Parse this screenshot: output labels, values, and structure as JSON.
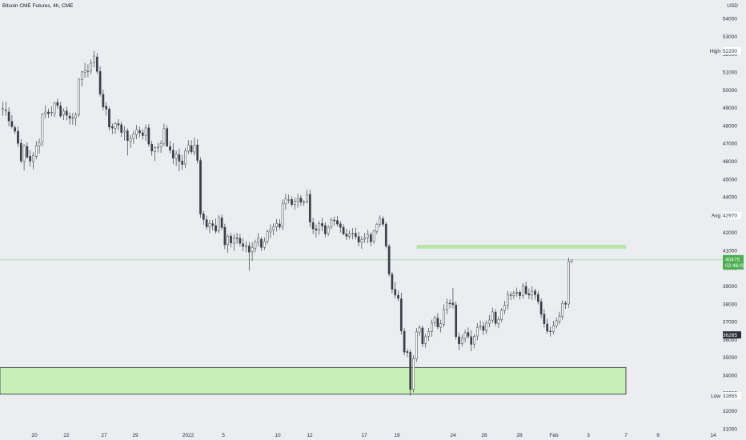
{
  "header": {
    "title": "Bitcoin CME Futures, 4h, CME",
    "currency": "USD"
  },
  "colors": {
    "background": "#ebedf0",
    "candle_up_fill": "#ffffff",
    "candle_down_fill": "#3c3f47",
    "candle_outline": "#3c3f47",
    "zone_fill": "#c8efb8",
    "zone_border": "#2a2e39",
    "thin_zone_fill": "#b7e7a8",
    "price_line": "#8fd09a",
    "last_price_bg": "#4caf50",
    "label_bg": "#ffffff"
  },
  "chart_data": {
    "type": "candlestick",
    "title": "Bitcoin CME Futures, 4h, CME",
    "y_axis": {
      "unit": "USD",
      "range": [
        31000,
        54600
      ],
      "ticks": [
        54000,
        53000,
        52000,
        51000,
        50000,
        49000,
        48000,
        47000,
        46000,
        45000,
        44000,
        43000,
        42000,
        41000,
        40000,
        39000,
        38000,
        37000,
        36000,
        35000,
        34000,
        33000,
        32000,
        31000
      ]
    },
    "x_axis": {
      "ticks": [
        "20",
        "22",
        "27",
        "29",
        "2022",
        "5",
        "10",
        "12",
        "17",
        "19",
        "24",
        "26",
        "28",
        "Feb",
        "3",
        "7",
        "9",
        "14"
      ]
    },
    "levels": [
      {
        "label": "High",
        "value": 52200
      },
      {
        "label": "Avg",
        "value": 42970
      },
      {
        "label": "Low",
        "value": 32855
      }
    ],
    "last_price": {
      "value": 40475,
      "countdown": "02:46:02"
    },
    "marker_price": 36265,
    "zones": [
      {
        "name": "support-zone",
        "from": 32940,
        "to": 34440,
        "x_start": "start",
        "x_end": "9"
      },
      {
        "name": "resistance-zone",
        "from": 41120,
        "to": 41300,
        "x_start": "19",
        "x_end": "9"
      }
    ],
    "candles": [
      [
        48904,
        49337,
        48560,
        48958
      ],
      [
        48875,
        49335,
        48560,
        48840
      ],
      [
        48770,
        49029,
        47961,
        48266
      ],
      [
        48243,
        48590,
        47850,
        47946
      ],
      [
        47895,
        48031,
        47525,
        47690
      ],
      [
        47689,
        47938,
        46811,
        47008
      ],
      [
        47008,
        47241,
        45885,
        46019
      ],
      [
        46021,
        46954,
        45504,
        46878
      ],
      [
        46833,
        47064,
        46143,
        46236
      ],
      [
        46281,
        46627,
        45703,
        46010
      ],
      [
        45980,
        46511,
        45552,
        46335
      ],
      [
        46288,
        47137,
        46123,
        46875
      ],
      [
        46887,
        47269,
        46445,
        47025
      ],
      [
        47082,
        48703,
        46840,
        48642
      ],
      [
        48662,
        49132,
        48408,
        48768
      ],
      [
        48768,
        48960,
        48432,
        48673
      ],
      [
        48751,
        49082,
        48530,
        48757
      ],
      [
        48703,
        49345,
        48488,
        49268
      ],
      [
        49310,
        49520,
        48948,
        49127
      ],
      [
        49107,
        49317,
        48446,
        48540
      ],
      [
        48607,
        48967,
        48319,
        48815
      ],
      [
        48825,
        49066,
        48297,
        48582
      ],
      [
        48542,
        48750,
        48071,
        48411
      ],
      [
        48430,
        48716,
        48054,
        48450
      ],
      [
        48423,
        48753,
        48003,
        48606
      ],
      [
        48631,
        50651,
        48492,
        50616
      ],
      [
        50572,
        51052,
        50205,
        51018
      ],
      [
        50981,
        51521,
        50695,
        51089
      ],
      [
        51047,
        51446,
        50719,
        51056
      ],
      [
        51078,
        51722,
        50885,
        51501
      ],
      [
        51531,
        52200,
        51274,
        51905
      ],
      [
        51859,
        52076,
        50913,
        51044
      ],
      [
        51036,
        51326,
        49633,
        49775
      ],
      [
        49757,
        50023,
        48871,
        49047
      ],
      [
        49096,
        49312,
        48569,
        48931
      ],
      [
        48929,
        49072,
        47718,
        47922
      ],
      [
        47953,
        48129,
        47527,
        47865
      ],
      [
        47859,
        48213,
        47545,
        48110
      ],
      [
        48117,
        48362,
        47755,
        48032
      ],
      [
        48056,
        48230,
        47377,
        47621
      ],
      [
        47641,
        47972,
        47176,
        47719
      ],
      [
        47707,
        47850,
        46331,
        47167
      ],
      [
        47120,
        47472,
        46752,
        47271
      ],
      [
        47284,
        47701,
        46986,
        47532
      ],
      [
        47496,
        48044,
        47244,
        47771
      ],
      [
        47726,
        47935,
        47347,
        47602
      ],
      [
        47604,
        47806,
        47227,
        47445
      ],
      [
        47451,
        48061,
        47147,
        47875
      ],
      [
        47880,
        48097,
        46813,
        46970
      ],
      [
        46958,
        47138,
        46319,
        46572
      ],
      [
        46555,
        46862,
        46011,
        46759
      ],
      [
        46749,
        47049,
        46500,
        46793
      ],
      [
        46809,
        47177,
        46475,
        46999
      ],
      [
        47016,
        48111,
        46857,
        47831
      ],
      [
        47838,
        48030,
        46800,
        46855
      ],
      [
        46831,
        47154,
        46447,
        46629
      ],
      [
        46623,
        47019,
        45849,
        46176
      ],
      [
        46166,
        46598,
        45740,
        46389
      ],
      [
        46370,
        46724,
        45445,
        46004
      ],
      [
        46023,
        46366,
        45524,
        45823
      ],
      [
        45843,
        46762,
        45617,
        46591
      ],
      [
        46571,
        47178,
        46410,
        46916
      ],
      [
        46879,
        47183,
        46416,
        46529
      ],
      [
        46525,
        47330,
        46337,
        46896
      ],
      [
        46922,
        47241,
        45870,
        46054
      ],
      [
        46049,
        46218,
        42838,
        43051
      ],
      [
        43062,
        43223,
        42445,
        42738
      ],
      [
        42729,
        42954,
        42175,
        42326
      ],
      [
        42313,
        42710,
        41976,
        42521
      ],
      [
        42503,
        42713,
        42138,
        42400
      ],
      [
        42401,
        42793,
        41934,
        42081
      ],
      [
        42116,
        42994,
        41981,
        42852
      ],
      [
        42829,
        43010,
        42161,
        42284
      ],
      [
        42298,
        42495,
        41073,
        41318
      ],
      [
        41330,
        41922,
        40873,
        41809
      ],
      [
        41809,
        41980,
        41160,
        41420
      ],
      [
        41412,
        41911,
        40976,
        41693
      ],
      [
        41704,
        41979,
        41364,
        41688
      ],
      [
        41689,
        41933,
        41223,
        41405
      ],
      [
        41378,
        41687,
        40964,
        41227
      ],
      [
        41195,
        41527,
        40901,
        41273
      ],
      [
        41263,
        41473,
        39868,
        40904
      ],
      [
        40946,
        41466,
        40415,
        41162
      ],
      [
        41132,
        41608,
        40881,
        41478
      ],
      [
        41473,
        41976,
        41230,
        41673
      ],
      [
        41632,
        41775,
        40965,
        41172
      ],
      [
        41178,
        41738,
        41028,
        41499
      ],
      [
        41518,
        42166,
        41351,
        42051
      ],
      [
        42039,
        42466,
        41690,
        42181
      ],
      [
        42168,
        42518,
        41858,
        42318
      ],
      [
        42330,
        42764,
        42066,
        42520
      ],
      [
        42491,
        42764,
        42182,
        42312
      ],
      [
        42315,
        43861,
        42144,
        43612
      ],
      [
        43616,
        44182,
        43276,
        43890
      ],
      [
        43840,
        44142,
        43636,
        43853
      ],
      [
        43865,
        44034,
        43451,
        43576
      ],
      [
        43593,
        43968,
        43295,
        43751
      ],
      [
        43750,
        44170,
        43407,
        43907
      ],
      [
        43934,
        44107,
        43515,
        43710
      ],
      [
        43690,
        43840,
        43488,
        43734
      ],
      [
        43746,
        44421,
        43624,
        44140
      ],
      [
        44151,
        44405,
        42313,
        42592
      ],
      [
        42564,
        42821,
        41932,
        42210
      ],
      [
        42215,
        42451,
        41739,
        42142
      ],
      [
        42150,
        42652,
        41887,
        42513
      ],
      [
        42513,
        42829,
        42088,
        42376
      ],
      [
        42402,
        42583,
        41745,
        41938
      ],
      [
        41963,
        42427,
        41818,
        42296
      ],
      [
        42321,
        42838,
        42201,
        42712
      ],
      [
        42706,
        42900,
        42400,
        42684
      ],
      [
        42682,
        42930,
        42346,
        42483
      ],
      [
        42495,
        42640,
        42004,
        42301
      ],
      [
        42302,
        42475,
        41858,
        41922
      ],
      [
        41921,
        42213,
        41587,
        41797
      ],
      [
        41797,
        42138,
        41625,
        41913
      ],
      [
        41924,
        42254,
        41622,
        41959
      ],
      [
        41969,
        42288,
        41622,
        41780
      ],
      [
        41781,
        42034,
        41237,
        41463
      ],
      [
        41473,
        41798,
        41102,
        41611
      ],
      [
        41638,
        41995,
        41423,
        41697
      ],
      [
        41720,
        42162,
        41393,
        41911
      ],
      [
        41892,
        42022,
        41251,
        41490
      ],
      [
        41515,
        42162,
        41378,
        42093
      ],
      [
        42067,
        42567,
        41911,
        42472
      ],
      [
        42475,
        42974,
        42306,
        42805
      ],
      [
        42781,
        42918,
        42344,
        42473
      ],
      [
        42483,
        42598,
        41120,
        41246
      ],
      [
        41239,
        41356,
        39539,
        39680
      ],
      [
        39669,
        39805,
        38590,
        38825
      ],
      [
        38823,
        39227,
        38306,
        38498
      ],
      [
        38486,
        38743,
        38163,
        38319
      ],
      [
        38289,
        38628,
        36295,
        36490
      ],
      [
        36471,
        36648,
        35124,
        35300
      ],
      [
        35333,
        35481,
        35020,
        35278
      ],
      [
        35290,
        35459,
        32855,
        33199
      ],
      [
        33211,
        35123,
        33049,
        34937
      ],
      [
        34919,
        36649,
        34754,
        36433
      ],
      [
        36422,
        36809,
        36196,
        36661
      ],
      [
        36654,
        36784,
        35587,
        35768
      ],
      [
        35783,
        36315,
        35553,
        36164
      ],
      [
        36193,
        36651,
        35928,
        36458
      ],
      [
        36457,
        37121,
        36160,
        36930
      ],
      [
        36936,
        37337,
        36746,
        37204
      ],
      [
        37209,
        37487,
        36585,
        36710
      ],
      [
        36695,
        37114,
        36409,
        36889
      ],
      [
        36863,
        37979,
        36709,
        37684
      ],
      [
        37682,
        38304,
        37419,
        38067
      ],
      [
        38045,
        38256,
        37768,
        38043
      ],
      [
        38056,
        38890,
        37750,
        37962
      ],
      [
        37946,
        38138,
        36001,
        36166
      ],
      [
        36164,
        36384,
        35400,
        35760
      ],
      [
        35783,
        36280,
        35605,
        36078
      ],
      [
        36076,
        36554,
        35833,
        36384
      ],
      [
        36406,
        36678,
        36045,
        36185
      ],
      [
        36165,
        36537,
        35346,
        35737
      ],
      [
        35750,
        36307,
        35515,
        36174
      ],
      [
        36207,
        36926,
        35962,
        36690
      ],
      [
        36704,
        37075,
        36531,
        36747
      ],
      [
        36756,
        37000,
        36258,
        36519
      ],
      [
        36494,
        37074,
        36314,
        36927
      ],
      [
        36919,
        37380,
        36690,
        37099
      ],
      [
        37095,
        37794,
        36927,
        37557
      ],
      [
        37546,
        37711,
        36761,
        36912
      ],
      [
        36910,
        37301,
        36646,
        37138
      ],
      [
        37127,
        37765,
        36994,
        37638
      ],
      [
        37625,
        38174,
        37433,
        37936
      ],
      [
        37945,
        38731,
        37684,
        38534
      ],
      [
        38512,
        38683,
        38220,
        38488
      ],
      [
        38478,
        38752,
        38290,
        38603
      ],
      [
        38607,
        38924,
        38403,
        38658
      ],
      [
        38660,
        38767,
        38251,
        38466
      ],
      [
        38466,
        39159,
        38293,
        39001
      ],
      [
        38990,
        39253,
        38514,
        38564
      ],
      [
        38570,
        38868,
        38269,
        38500
      ],
      [
        38497,
        39005,
        38231,
        38715
      ],
      [
        38729,
        38859,
        38246,
        38521
      ],
      [
        38534,
        38713,
        37974,
        38133
      ],
      [
        38132,
        38315,
        37203,
        37424
      ],
      [
        37430,
        37720,
        36683,
        36895
      ],
      [
        36878,
        37167,
        36327,
        36473
      ],
      [
        36479,
        36728,
        36171,
        36465
      ],
      [
        36455,
        37058,
        36314,
        36769
      ],
      [
        36780,
        37234,
        36638,
        37061
      ],
      [
        37044,
        37562,
        36853,
        37312
      ],
      [
        37291,
        38204,
        37116,
        38043
      ],
      [
        38043,
        38180,
        37730,
        37983
      ],
      [
        37997,
        40608,
        37782,
        40384
      ],
      [
        40380,
        40489,
        40285,
        40475
      ]
    ]
  }
}
